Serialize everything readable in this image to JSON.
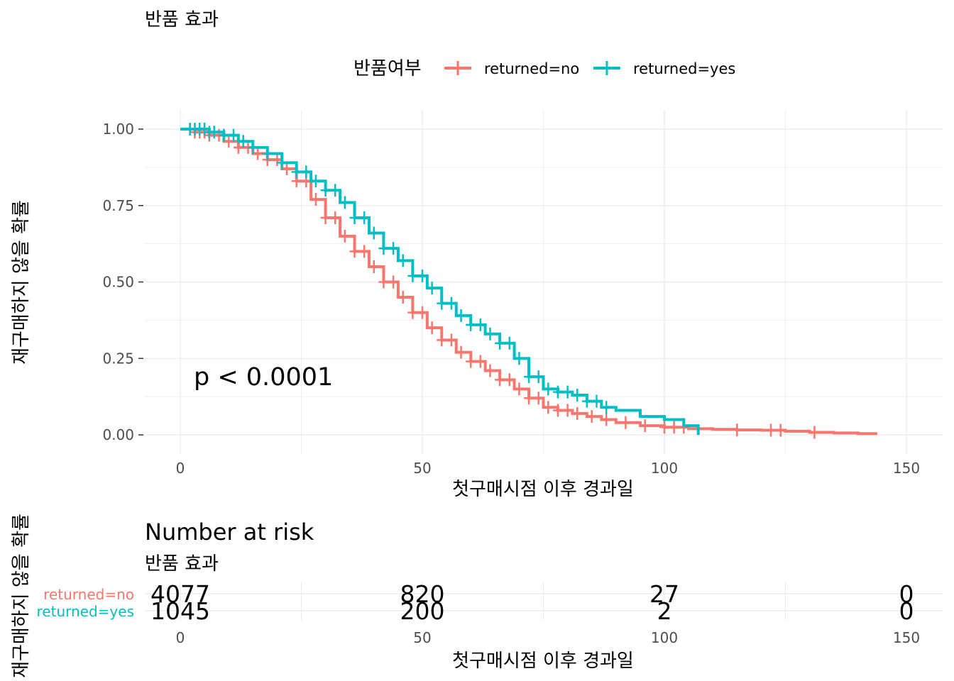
{
  "chart_data": [
    {
      "type": "line",
      "subtype": "kaplan-meier-step",
      "title": "반품 효과",
      "xlabel": "첫구매시점 이후 경과일",
      "ylabel": "재구매하지 않을 확률",
      "xlim": [
        0,
        150
      ],
      "ylim": [
        0,
        1
      ],
      "x_ticks": [
        0,
        50,
        100,
        150
      ],
      "y_ticks": [
        0.0,
        0.25,
        0.5,
        0.75,
        1.0
      ],
      "y_tick_labels": [
        "0.00",
        "0.25",
        "0.50",
        "0.75",
        "1.00"
      ],
      "grid": true,
      "legend": {
        "title": "반품여부",
        "position": "top",
        "entries": [
          "returned=no",
          "returned=yes"
        ]
      },
      "annotation": "p < 0.0001",
      "series": [
        {
          "name": "returned=no",
          "color": "#F8766D",
          "x": [
            0,
            3,
            6,
            9,
            12,
            15,
            18,
            21,
            24,
            27,
            30,
            33,
            36,
            39,
            42,
            45,
            48,
            51,
            54,
            57,
            60,
            63,
            66,
            69,
            72,
            75,
            78,
            81,
            84,
            87,
            90,
            95,
            100,
            105,
            110,
            115,
            120,
            125,
            130,
            135,
            140,
            144
          ],
          "y": [
            1.0,
            0.99,
            0.98,
            0.96,
            0.94,
            0.92,
            0.9,
            0.87,
            0.83,
            0.77,
            0.71,
            0.65,
            0.6,
            0.55,
            0.5,
            0.45,
            0.4,
            0.35,
            0.31,
            0.27,
            0.24,
            0.21,
            0.18,
            0.15,
            0.12,
            0.09,
            0.08,
            0.07,
            0.06,
            0.05,
            0.04,
            0.03,
            0.025,
            0.02,
            0.018,
            0.016,
            0.015,
            0.012,
            0.008,
            0.006,
            0.004,
            0.004
          ],
          "censored_x": [
            2,
            3,
            4,
            5,
            6,
            8,
            10,
            12,
            14,
            16,
            18,
            20,
            22,
            24,
            26,
            28,
            30,
            32,
            34,
            36,
            38,
            40,
            42,
            44,
            46,
            48,
            50,
            52,
            54,
            56,
            58,
            60,
            62,
            64,
            66,
            68,
            70,
            72,
            74,
            76,
            78,
            80,
            82,
            85,
            88,
            92,
            96,
            100,
            102,
            104,
            115,
            122,
            124,
            131
          ]
        },
        {
          "name": "returned=yes",
          "color": "#00BFC4",
          "x": [
            0,
            3,
            6,
            9,
            12,
            15,
            18,
            21,
            24,
            27,
            30,
            33,
            36,
            39,
            42,
            45,
            48,
            51,
            54,
            57,
            60,
            63,
            66,
            69,
            72,
            75,
            78,
            81,
            84,
            87,
            90,
            95,
            100,
            104,
            107
          ],
          "y": [
            1.0,
            1.0,
            0.99,
            0.98,
            0.96,
            0.94,
            0.92,
            0.89,
            0.86,
            0.83,
            0.8,
            0.76,
            0.71,
            0.66,
            0.61,
            0.57,
            0.52,
            0.48,
            0.43,
            0.39,
            0.36,
            0.33,
            0.3,
            0.25,
            0.19,
            0.15,
            0.14,
            0.13,
            0.11,
            0.09,
            0.08,
            0.06,
            0.05,
            0.03,
            0.0
          ],
          "censored_x": [
            2,
            3,
            4,
            5,
            6,
            7,
            9,
            11,
            13,
            15,
            18,
            21,
            24,
            26,
            28,
            30,
            32,
            34,
            36,
            38,
            40,
            42,
            44,
            46,
            48,
            50,
            52,
            54,
            56,
            58,
            60,
            62,
            64,
            66,
            68,
            70,
            72,
            74,
            76,
            78,
            80,
            82,
            84,
            86,
            88
          ]
        }
      ]
    },
    {
      "type": "table",
      "title": "Number at risk",
      "subtitle": "반품 효과",
      "xlabel": "첫구매시점 이후 경과일",
      "ylabel": "재구매하지 않을 확률",
      "x_ticks": [
        0,
        50,
        100,
        150
      ],
      "rows": [
        {
          "name": "returned=no",
          "color": "#F8766D",
          "values": [
            4077,
            820,
            27,
            0
          ]
        },
        {
          "name": "returned=yes",
          "color": "#00BFC4",
          "values": [
            1045,
            200,
            2,
            0
          ]
        }
      ]
    }
  ]
}
